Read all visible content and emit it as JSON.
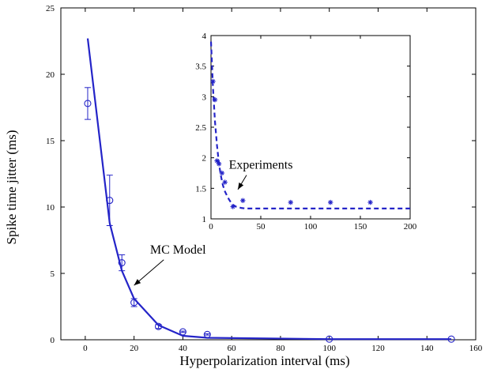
{
  "chart_data": [
    {
      "id": "main",
      "type": "line",
      "xlabel": "Hyperpolarization interval (ms)",
      "ylabel": "Spike time jitter (ms)",
      "xlim": [
        -10,
        160
      ],
      "ylim": [
        0,
        25
      ],
      "xticks": [
        0,
        20,
        40,
        60,
        80,
        100,
        120,
        140,
        160
      ],
      "yticks": [
        0,
        5,
        10,
        15,
        20,
        25
      ],
      "grid": false,
      "color": "#2424c8",
      "series": [
        {
          "style": "solid-line",
          "x": [
            1,
            10,
            15,
            20,
            30,
            40,
            50,
            100,
            150
          ],
          "y": [
            22.7,
            8.8,
            5.2,
            3.1,
            1.1,
            0.3,
            0.15,
            0.05,
            0.05
          ]
        },
        {
          "style": "circle-markers-errorbars",
          "x": [
            1,
            10,
            15,
            20,
            30,
            40,
            50,
            100,
            150
          ],
          "y": [
            17.8,
            10.5,
            5.8,
            2.8,
            1.0,
            0.6,
            0.4,
            0.05,
            0.05
          ],
          "err": [
            1.2,
            1.9,
            0.6,
            0.3,
            0.15,
            0.05,
            0.05,
            0,
            0
          ]
        }
      ],
      "annotations": [
        {
          "text": "MC Model",
          "x": 38,
          "y": 6.5,
          "arrow_to_x": 20,
          "arrow_to_y": 4.1
        }
      ]
    },
    {
      "id": "inset",
      "type": "line",
      "xlim": [
        0,
        200
      ],
      "ylim": [
        1,
        4
      ],
      "xticks": [
        0,
        50,
        100,
        150,
        200
      ],
      "yticks": [
        1,
        1.5,
        2,
        2.5,
        3,
        3.5,
        4
      ],
      "grid": false,
      "color": "#2424c8",
      "series": [
        {
          "style": "dashed-line",
          "x": [
            0,
            2,
            4,
            6,
            8,
            10,
            12,
            14,
            16,
            18,
            20,
            22,
            25,
            30,
            35,
            40,
            50,
            100,
            150,
            200
          ],
          "y": [
            3.9,
            3.15,
            2.6,
            2.2,
            1.9,
            1.7,
            1.55,
            1.45,
            1.38,
            1.32,
            1.27,
            1.23,
            1.2,
            1.18,
            1.17,
            1.17,
            1.17,
            1.17,
            1.17,
            1.17
          ]
        },
        {
          "style": "star-markers",
          "x": [
            2,
            4,
            6,
            8,
            11,
            14,
            22,
            32,
            80,
            120,
            160
          ],
          "y": [
            3.25,
            2.95,
            1.95,
            1.9,
            1.75,
            1.6,
            1.2,
            1.3,
            1.27,
            1.27,
            1.27
          ]
        }
      ],
      "annotations": [
        {
          "text": "Experiments",
          "x": 50,
          "y": 1.82,
          "arrow_to_x": 27,
          "arrow_to_y": 1.48
        }
      ]
    }
  ]
}
